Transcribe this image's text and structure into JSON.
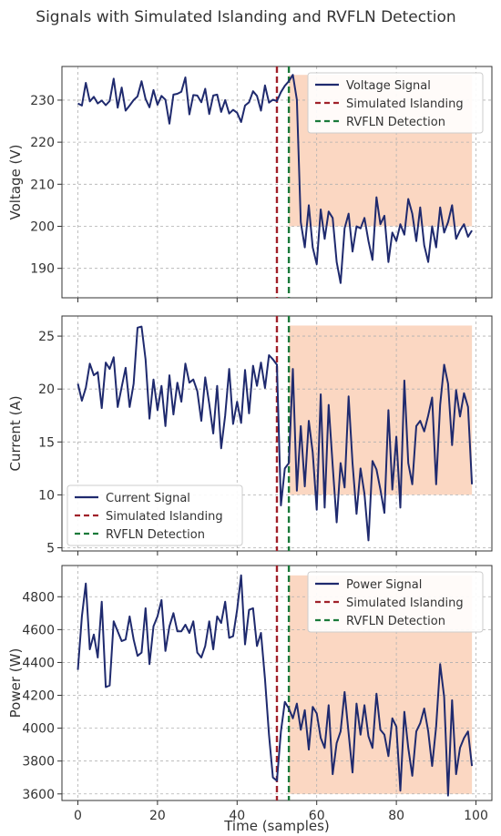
{
  "title": "Signals with Simulated Islanding and RVFLN Detection",
  "chart_data": [
    {
      "type": "line",
      "id": "voltage",
      "ylabel": "Voltage (V)",
      "xlabel": "",
      "xlim": [
        -4,
        104
      ],
      "ylim": [
        183,
        238
      ],
      "yticks": [
        190,
        200,
        210,
        220,
        230
      ],
      "xticks": [
        0,
        20,
        40,
        60,
        80,
        100
      ],
      "grid": true,
      "legend_position": "top-right",
      "shade": {
        "x0": 53,
        "x1": 99,
        "y0": 200,
        "y1": 236
      },
      "vlines": [
        {
          "name": "Simulated Islanding",
          "x": 50,
          "color": "#a0212a"
        },
        {
          "name": "RVFLN Detection",
          "x": 53,
          "color": "#1a7a3a"
        }
      ],
      "series": [
        {
          "name": "Voltage Signal",
          "color": "#1f2a6e",
          "x0": 0,
          "values": [
            229.2,
            228.7,
            234.1,
            229.7,
            230.8,
            229.2,
            229.9,
            228.8,
            229.8,
            235.1,
            228.2,
            233.0,
            227.5,
            228.7,
            230.0,
            230.9,
            234.5,
            230.3,
            228.3,
            232.4,
            228.9,
            231.0,
            230.1,
            224.4,
            231.3,
            231.5,
            232.0,
            235.4,
            226.6,
            231.2,
            231.1,
            229.5,
            232.7,
            226.7,
            231.1,
            231.3,
            227.2,
            230.0,
            226.8,
            227.7,
            227.0,
            224.8,
            228.7,
            229.5,
            232.1,
            231.0,
            227.5,
            233.5,
            229.4,
            230.1,
            229.8,
            231.9,
            233.4,
            234.5,
            236.0,
            230.1,
            201.0,
            195.0,
            205.0,
            195.0,
            191.0,
            204.0,
            197.0,
            203.5,
            202.0,
            191.5,
            186.5,
            199.5,
            203.0,
            194.0,
            200.0,
            199.5,
            202.0,
            196.5,
            192.0,
            206.9,
            200.5,
            202.5,
            191.5,
            198.5,
            196.5,
            200.5,
            198.0,
            206.5,
            203.0,
            196.5,
            204.5,
            195.5,
            191.5,
            200.0,
            195.0,
            204.5,
            198.5,
            201.0,
            205.0,
            197.0,
            199.0,
            200.5,
            197.5,
            199.0
          ]
        }
      ],
      "legend": [
        "Voltage Signal",
        "Simulated Islanding",
        "RVFLN Detection"
      ]
    },
    {
      "type": "line",
      "id": "current",
      "ylabel": "Current (A)",
      "xlabel": "",
      "xlim": [
        -4,
        104
      ],
      "ylim": [
        4.7,
        26.9
      ],
      "yticks": [
        5,
        10,
        15,
        20,
        25
      ],
      "xticks": [
        0,
        20,
        40,
        60,
        80,
        100
      ],
      "grid": true,
      "legend_position": "bottom-left",
      "shade": {
        "x0": 53,
        "x1": 99,
        "y0": 10,
        "y1": 26
      },
      "vlines": [
        {
          "name": "Simulated Islanding",
          "x": 50,
          "color": "#a0212a"
        },
        {
          "name": "RVFLN Detection",
          "x": 53,
          "color": "#1a7a3a"
        }
      ],
      "series": [
        {
          "name": "Current Signal",
          "color": "#1f2a6e",
          "x0": 0,
          "values": [
            20.5,
            18.9,
            20.1,
            22.4,
            21.3,
            21.6,
            18.2,
            22.5,
            21.9,
            23.0,
            18.3,
            20.2,
            22.0,
            18.3,
            20.5,
            25.8,
            25.9,
            22.8,
            17.2,
            20.9,
            18.0,
            20.3,
            16.5,
            21.3,
            17.6,
            20.6,
            18.8,
            22.4,
            20.6,
            20.9,
            19.8,
            17.0,
            21.1,
            18.6,
            15.8,
            20.3,
            14.4,
            17.5,
            21.9,
            16.7,
            18.8,
            16.8,
            21.8,
            17.7,
            22.2,
            20.3,
            22.5,
            20.1,
            23.2,
            22.8,
            22.3,
            9.0,
            12.5,
            13.0,
            21.9,
            10.4,
            16.5,
            10.8,
            17.0,
            14.0,
            8.6,
            19.5,
            8.8,
            18.5,
            12.8,
            7.4,
            13.0,
            10.7,
            19.3,
            13.0,
            8.2,
            12.5,
            10.1,
            5.7,
            13.2,
            12.4,
            10.5,
            8.3,
            18.0,
            10.5,
            15.5,
            8.8,
            20.8,
            13.0,
            11.0,
            16.5,
            17.0,
            16.0,
            17.5,
            19.2,
            11.0,
            18.5,
            22.3,
            20.5,
            14.7,
            19.9,
            17.4,
            19.6,
            18.3,
            11.0
          ]
        }
      ],
      "legend": [
        "Current Signal",
        "Simulated Islanding",
        "RVFLN Detection"
      ]
    },
    {
      "type": "line",
      "id": "power",
      "xlabel": "Time (samples)",
      "ylabel": "Power (W)",
      "xlim": [
        -4,
        104
      ],
      "ylim": [
        3560,
        4990
      ],
      "yticks": [
        3600,
        3800,
        4000,
        4200,
        4400,
        4600,
        4800
      ],
      "xticks": [
        0,
        20,
        40,
        60,
        80,
        100
      ],
      "grid": true,
      "legend_position": "top-right",
      "shade": {
        "x0": 53,
        "x1": 99,
        "y0": 3600,
        "y1": 4930
      },
      "vlines": [
        {
          "name": "Simulated Islanding",
          "x": 50,
          "color": "#a0212a"
        },
        {
          "name": "RVFLN Detection",
          "x": 53,
          "color": "#1a7a3a"
        }
      ],
      "series": [
        {
          "name": "Power Signal",
          "color": "#1f2a6e",
          "x0": 0,
          "values": [
            4355,
            4680,
            4880,
            4480,
            4570,
            4430,
            4770,
            4250,
            4260,
            4650,
            4590,
            4530,
            4540,
            4680,
            4540,
            4440,
            4460,
            4730,
            4390,
            4620,
            4680,
            4780,
            4470,
            4620,
            4700,
            4590,
            4590,
            4630,
            4580,
            4650,
            4460,
            4430,
            4500,
            4650,
            4480,
            4680,
            4640,
            4770,
            4550,
            4560,
            4720,
            4930,
            4510,
            4720,
            4730,
            4500,
            4580,
            4300,
            3960,
            3700,
            3680,
            3980,
            4160,
            4120,
            4060,
            4150,
            3990,
            4110,
            3870,
            4130,
            4090,
            3940,
            3880,
            4140,
            3720,
            3910,
            3980,
            4220,
            3970,
            3730,
            4150,
            3960,
            4140,
            3950,
            3880,
            4210,
            3990,
            3960,
            3830,
            4060,
            4010,
            3620,
            4100,
            3880,
            3710,
            3980,
            4030,
            4120,
            3980,
            3770,
            4010,
            4390,
            4190,
            3590,
            4170,
            3720,
            3880,
            3940,
            3980,
            3770
          ]
        }
      ],
      "legend": [
        "Power Signal",
        "Simulated Islanding",
        "RVFLN Detection"
      ]
    }
  ]
}
